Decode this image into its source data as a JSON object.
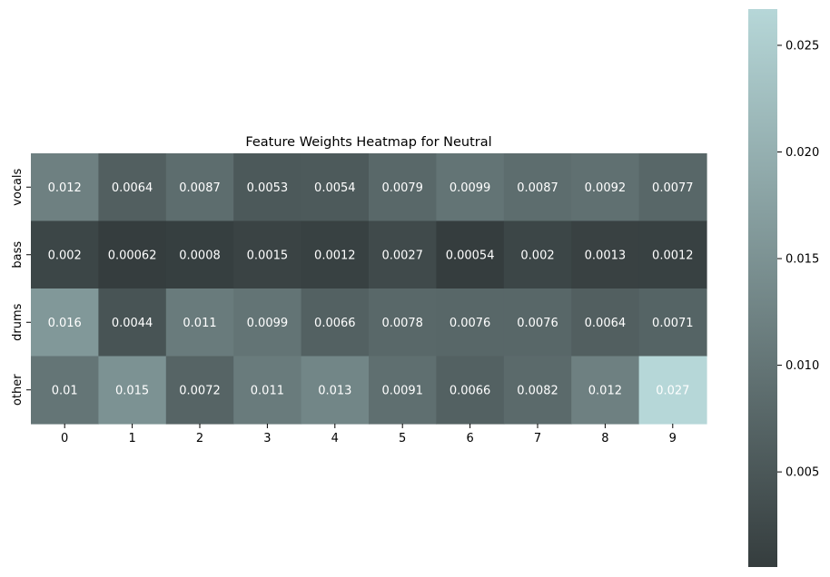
{
  "chart_data": {
    "type": "heatmap",
    "title": "Feature Weights Heatmap for Neutral",
    "xlabel": "",
    "ylabel": "",
    "x_categories": [
      "0",
      "1",
      "2",
      "3",
      "4",
      "5",
      "6",
      "7",
      "8",
      "9"
    ],
    "y_categories": [
      "vocals",
      "bass",
      "drums",
      "other"
    ],
    "values": [
      [
        0.012,
        0.0064,
        0.0087,
        0.0053,
        0.0054,
        0.0079,
        0.0099,
        0.0087,
        0.0092,
        0.0077
      ],
      [
        0.002,
        0.00062,
        0.0008,
        0.0015,
        0.0012,
        0.0027,
        0.00054,
        0.002,
        0.0013,
        0.0012
      ],
      [
        0.016,
        0.0044,
        0.011,
        0.0099,
        0.0066,
        0.0078,
        0.0076,
        0.0076,
        0.0064,
        0.0071
      ],
      [
        0.01,
        0.015,
        0.0072,
        0.011,
        0.013,
        0.0091,
        0.0066,
        0.0082,
        0.012,
        0.027
      ]
    ],
    "cell_labels": [
      [
        "0.012",
        "0.0064",
        "0.0087",
        "0.0053",
        "0.0054",
        "0.0079",
        "0.0099",
        "0.0087",
        "0.0092",
        "0.0077"
      ],
      [
        "0.002",
        "0.00062",
        "0.0008",
        "0.0015",
        "0.0012",
        "0.0027",
        "0.00054",
        "0.002",
        "0.0013",
        "0.0012"
      ],
      [
        "0.016",
        "0.0044",
        "0.011",
        "0.0099",
        "0.0066",
        "0.0078",
        "0.0076",
        "0.0076",
        "0.0064",
        "0.0071"
      ],
      [
        "0.01",
        "0.015",
        "0.0072",
        "0.011",
        "0.013",
        "0.0091",
        "0.0066",
        "0.0082",
        "0.012",
        "0.027"
      ]
    ],
    "colorbar": {
      "range": [
        0.00054,
        0.0267
      ],
      "ticks": [
        0.005,
        0.01,
        0.015,
        0.02,
        0.025
      ],
      "tick_labels": [
        "0.005",
        "0.010",
        "0.015",
        "0.020",
        "0.025"
      ]
    },
    "colors": {
      "low": "#353d3e",
      "high": "#b6d7d8",
      "cell_text": "#ffffff",
      "text": "#000000"
    }
  }
}
